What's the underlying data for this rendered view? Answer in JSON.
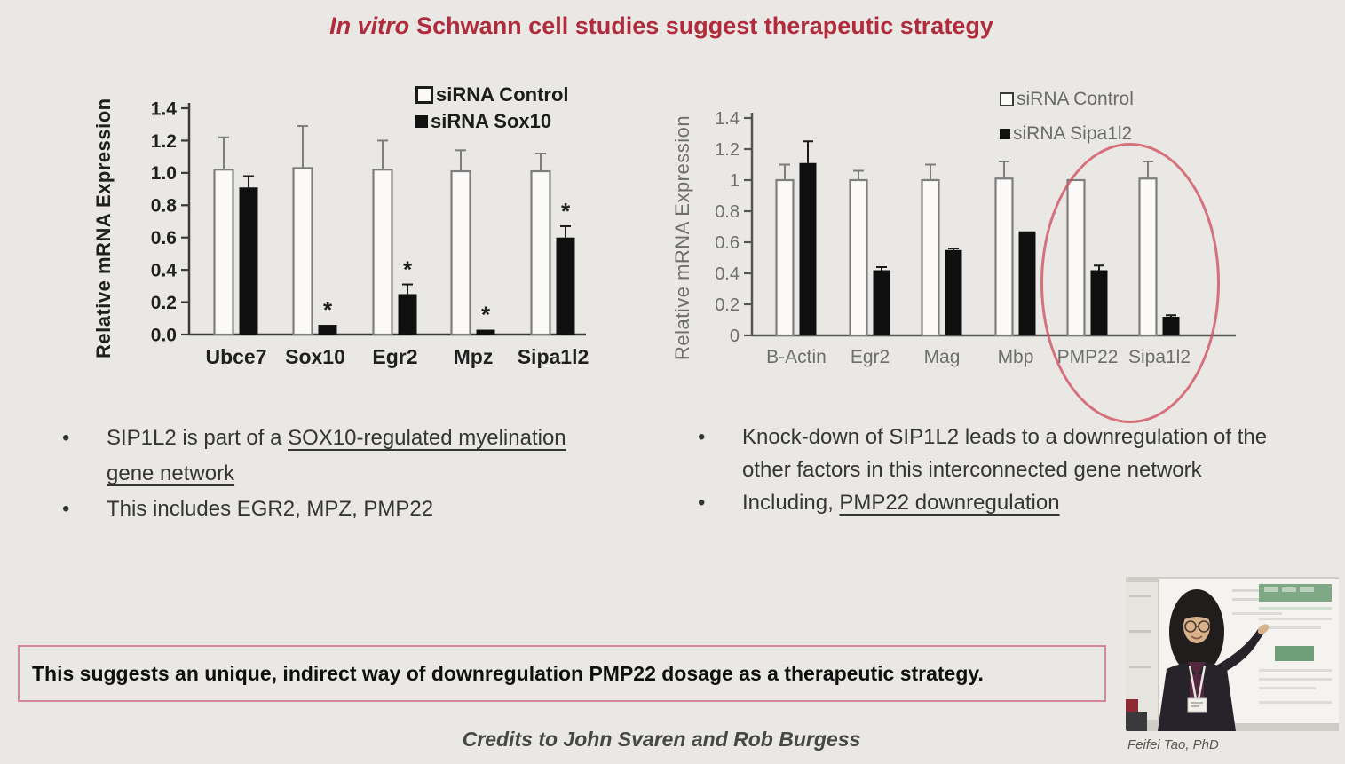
{
  "title": {
    "italic_part": "In vitro",
    "normal_part": "Schwann cell studies suggest therapeutic strategy",
    "color": "#b02b3b"
  },
  "chart_data": [
    {
      "type": "bar",
      "name": "sox10-knockdown-chart",
      "title": "",
      "ylabel": "Relative mRNA Expression",
      "xlabel": "",
      "ylim": [
        0,
        1.4
      ],
      "yticks": [
        "0.0",
        "0.2",
        "0.4",
        "0.6",
        "0.8",
        "1.0",
        "1.2",
        "1.4"
      ],
      "grid": false,
      "legend_position": "top-right",
      "categories": [
        "Ubce7",
        "Sox10",
        "Egr2",
        "Mpz",
        "Sipa1l2"
      ],
      "legend": [
        "siRNA Control",
        "siRNA Sox10"
      ],
      "series": [
        {
          "name": "siRNA Control",
          "fill": "white",
          "stroke": "#7d7d7d",
          "values": [
            1.02,
            1.03,
            1.02,
            1.01,
            1.01
          ],
          "errors": [
            0.2,
            0.26,
            0.18,
            0.13,
            0.11
          ],
          "sig": [
            false,
            false,
            false,
            false,
            false
          ]
        },
        {
          "name": "siRNA Sox10",
          "fill": "black",
          "stroke": "#1a1a1a",
          "values": [
            0.91,
            0.06,
            0.25,
            0.03,
            0.6
          ],
          "errors": [
            0.07,
            0.0,
            0.06,
            0.0,
            0.07
          ],
          "sig": [
            false,
            true,
            true,
            true,
            true
          ]
        }
      ],
      "text_color": "#1f1f1f",
      "axis_color": "#3a3a3a",
      "bold_text": true
    },
    {
      "type": "bar",
      "name": "sipa1l2-knockdown-chart",
      "title": "",
      "ylabel": "Relative mRNA Expression",
      "xlabel": "",
      "ylim": [
        0,
        1.4
      ],
      "yticks": [
        "0",
        "0.2",
        "0.4",
        "0.6",
        "0.8",
        "1",
        "1.2",
        "1.4"
      ],
      "grid": false,
      "legend_position": "top-right",
      "categories": [
        "B-Actin",
        "Egr2",
        "Mag",
        "Mbp",
        "PMP22",
        "Sipa1l2"
      ],
      "legend": [
        "siRNA Control",
        "siRNA Sipa1l2"
      ],
      "series": [
        {
          "name": "siRNA Control",
          "fill": "white",
          "stroke": "#7d7d7d",
          "values": [
            1.0,
            1.0,
            1.0,
            1.01,
            1.0,
            1.01
          ],
          "errors": [
            0.1,
            0.06,
            0.1,
            0.11,
            0.0,
            0.11
          ],
          "sig": [
            false,
            false,
            false,
            false,
            false,
            false
          ]
        },
        {
          "name": "siRNA Sipa1l2",
          "fill": "black",
          "stroke": "#1a1a1a",
          "values": [
            1.11,
            0.42,
            0.55,
            0.67,
            0.42,
            0.12
          ],
          "errors": [
            0.14,
            0.02,
            0.01,
            0.0,
            0.03,
            0.01
          ],
          "sig": [
            false,
            false,
            false,
            false,
            false,
            false
          ]
        }
      ],
      "text_color": "#6e6e6e",
      "axis_color": "#555555",
      "bold_text": false
    }
  ],
  "annotation": {
    "color": "#d15260"
  },
  "bullets_left": [
    {
      "pre": "SIP1L2 is part of a ",
      "underlined": "SOX10-regulated myelination gene network",
      "post": ""
    },
    {
      "pre": "This includes EGR2, MPZ, PMP22",
      "underlined": "",
      "post": ""
    }
  ],
  "bullets_right": [
    {
      "pre": "Knock-down of SIP1L2 leads to a downregulation of the other factors in this interconnected gene network",
      "underlined": "",
      "post": ""
    },
    {
      "pre": "Including, ",
      "underlined": "PMP22 downregulation",
      "post": ""
    }
  ],
  "callout": {
    "text": "This suggests an unique, indirect way of downregulation PMP22 dosage as a therapeutic strategy.",
    "border_color": "#d4879a"
  },
  "credits": "Credits to John Svaren and Rob Burgess",
  "photo": {
    "caption": "Feifei Tao, PhD"
  },
  "colors": {
    "background": "#eae8e5"
  }
}
